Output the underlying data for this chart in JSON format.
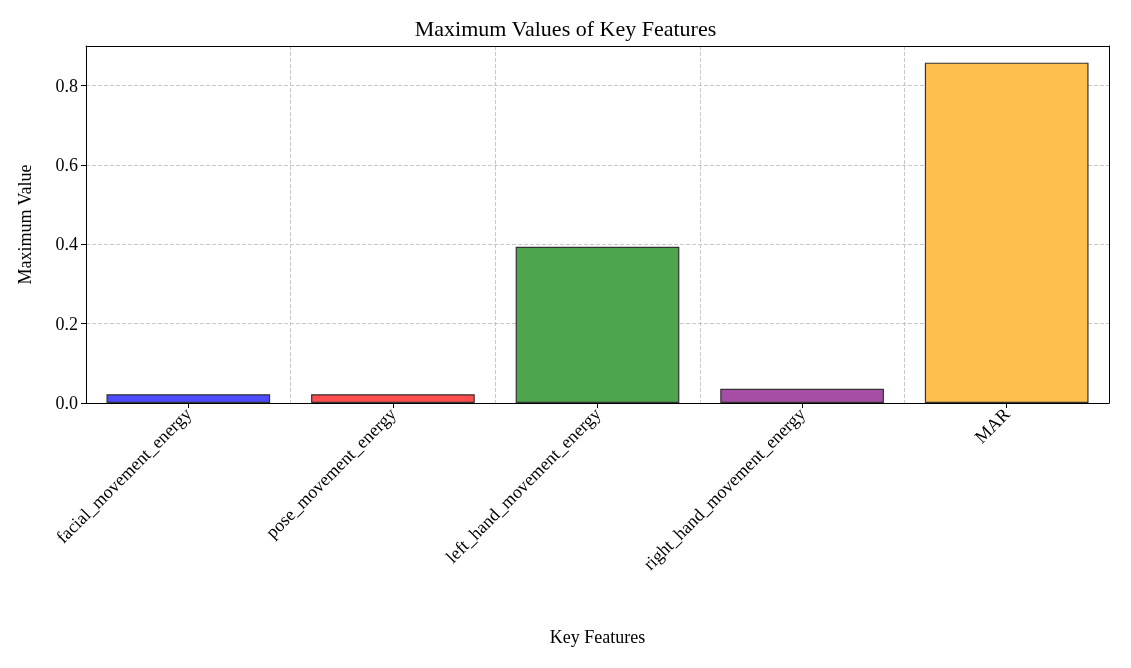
{
  "chart_data": {
    "type": "bar",
    "title": "Maximum Values of Key Features",
    "xlabel": "Key Features",
    "ylabel": "Maximum Value",
    "categories": [
      "facial_movement_energy",
      "pose_movement_energy",
      "left_hand_movement_energy",
      "right_hand_movement_energy",
      "MAR"
    ],
    "values": [
      0.022,
      0.022,
      0.394,
      0.036,
      0.858
    ],
    "colors": [
      "#4d4dff",
      "#ff4d4d",
      "#4da64d",
      "#a64da6",
      "#ffbf4d"
    ],
    "ylim": [
      0,
      0.9
    ],
    "yticks": [
      {
        "value": 0,
        "label": "0.0"
      },
      {
        "value": 0.2,
        "label": "0.2"
      },
      {
        "value": 0.4,
        "label": "0.4"
      },
      {
        "value": 0.6,
        "label": "0.6"
      },
      {
        "value": 0.8,
        "label": "0.8"
      }
    ],
    "grid": true
  }
}
